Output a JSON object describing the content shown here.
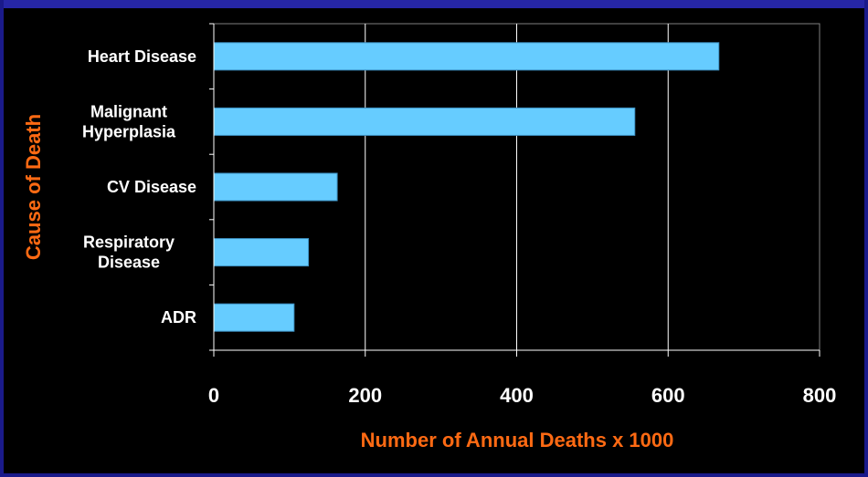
{
  "chart_data": {
    "type": "bar",
    "orientation": "horizontal",
    "categories": [
      "Heart Disease",
      "Malignant Hyperplasia",
      "CV Disease",
      "Respiratory Disease",
      "ADR"
    ],
    "category_lines": [
      [
        "Heart Disease"
      ],
      [
        "Malignant",
        "Hyperplasia"
      ],
      [
        "CV Disease"
      ],
      [
        "Respiratory",
        "Disease"
      ],
      [
        "ADR"
      ]
    ],
    "values": [
      667,
      556,
      163,
      125,
      106
    ],
    "xlabel": "Number of Annual Deaths x 1000",
    "ylabel": "Cause of Death",
    "xlim": [
      0,
      800
    ],
    "xticks": [
      "0",
      "200",
      "400",
      "600",
      "800"
    ],
    "grid": "vertical",
    "legend": "none"
  },
  "colors": {
    "bar_fill": "#66ccff",
    "bar_stroke": "#3d8fc0",
    "axis_title": "#ff6a13",
    "background": "#000000",
    "frame": "#2626a6",
    "gridline": "#ffffff"
  }
}
